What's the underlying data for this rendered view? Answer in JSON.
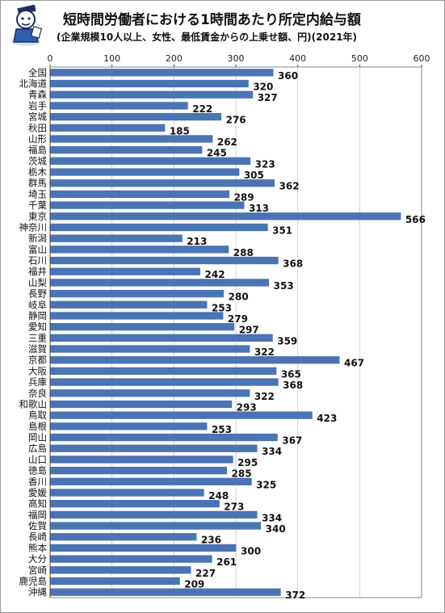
{
  "title": "短時間労働者における1時間あたり所定内給与額",
  "subtitle": "(企業規模10人以上、女性、最低賃金からの上乗せ額、円)(2021年)",
  "colors": {
    "bar": "#4a74b4",
    "grid": "#d2d2d2",
    "axis": "#444444"
  },
  "chart_data": {
    "type": "bar",
    "orientation": "horizontal",
    "title": "短時間労働者における1時間あたり所定内給与額",
    "subtitle": "(企業規模10人以上、女性、最低賃金からの上乗せ額、円)(2021年)",
    "xlim": [
      0,
      600
    ],
    "xticks": [
      "0",
      "100",
      "200",
      "300",
      "400",
      "500",
      "600"
    ],
    "tick_position": "top",
    "grid": true,
    "categories": [
      "全国",
      "北海道",
      "青森",
      "岩手",
      "宮城",
      "秋田",
      "山形",
      "福島",
      "茨城",
      "栃木",
      "群馬",
      "埼玉",
      "千葉",
      "東京",
      "神奈川",
      "新潟",
      "富山",
      "石川",
      "福井",
      "山梨",
      "長野",
      "岐阜",
      "静岡",
      "愛知",
      "三重",
      "滋賀",
      "京都",
      "大阪",
      "兵庫",
      "奈良",
      "和歌山",
      "鳥取",
      "島根",
      "岡山",
      "広島",
      "山口",
      "徳島",
      "香川",
      "愛媛",
      "高知",
      "福岡",
      "佐賀",
      "長崎",
      "熊本",
      "大分",
      "宮崎",
      "鹿児島",
      "沖縄"
    ],
    "values": [
      360,
      320,
      327,
      222,
      276,
      185,
      262,
      245,
      323,
      305,
      362,
      289,
      313,
      566,
      351,
      213,
      288,
      368,
      242,
      353,
      280,
      253,
      279,
      297,
      359,
      322,
      467,
      365,
      368,
      322,
      293,
      423,
      253,
      367,
      334,
      295,
      285,
      325,
      248,
      273,
      334,
      340,
      236,
      300,
      261,
      227,
      209,
      372
    ]
  }
}
